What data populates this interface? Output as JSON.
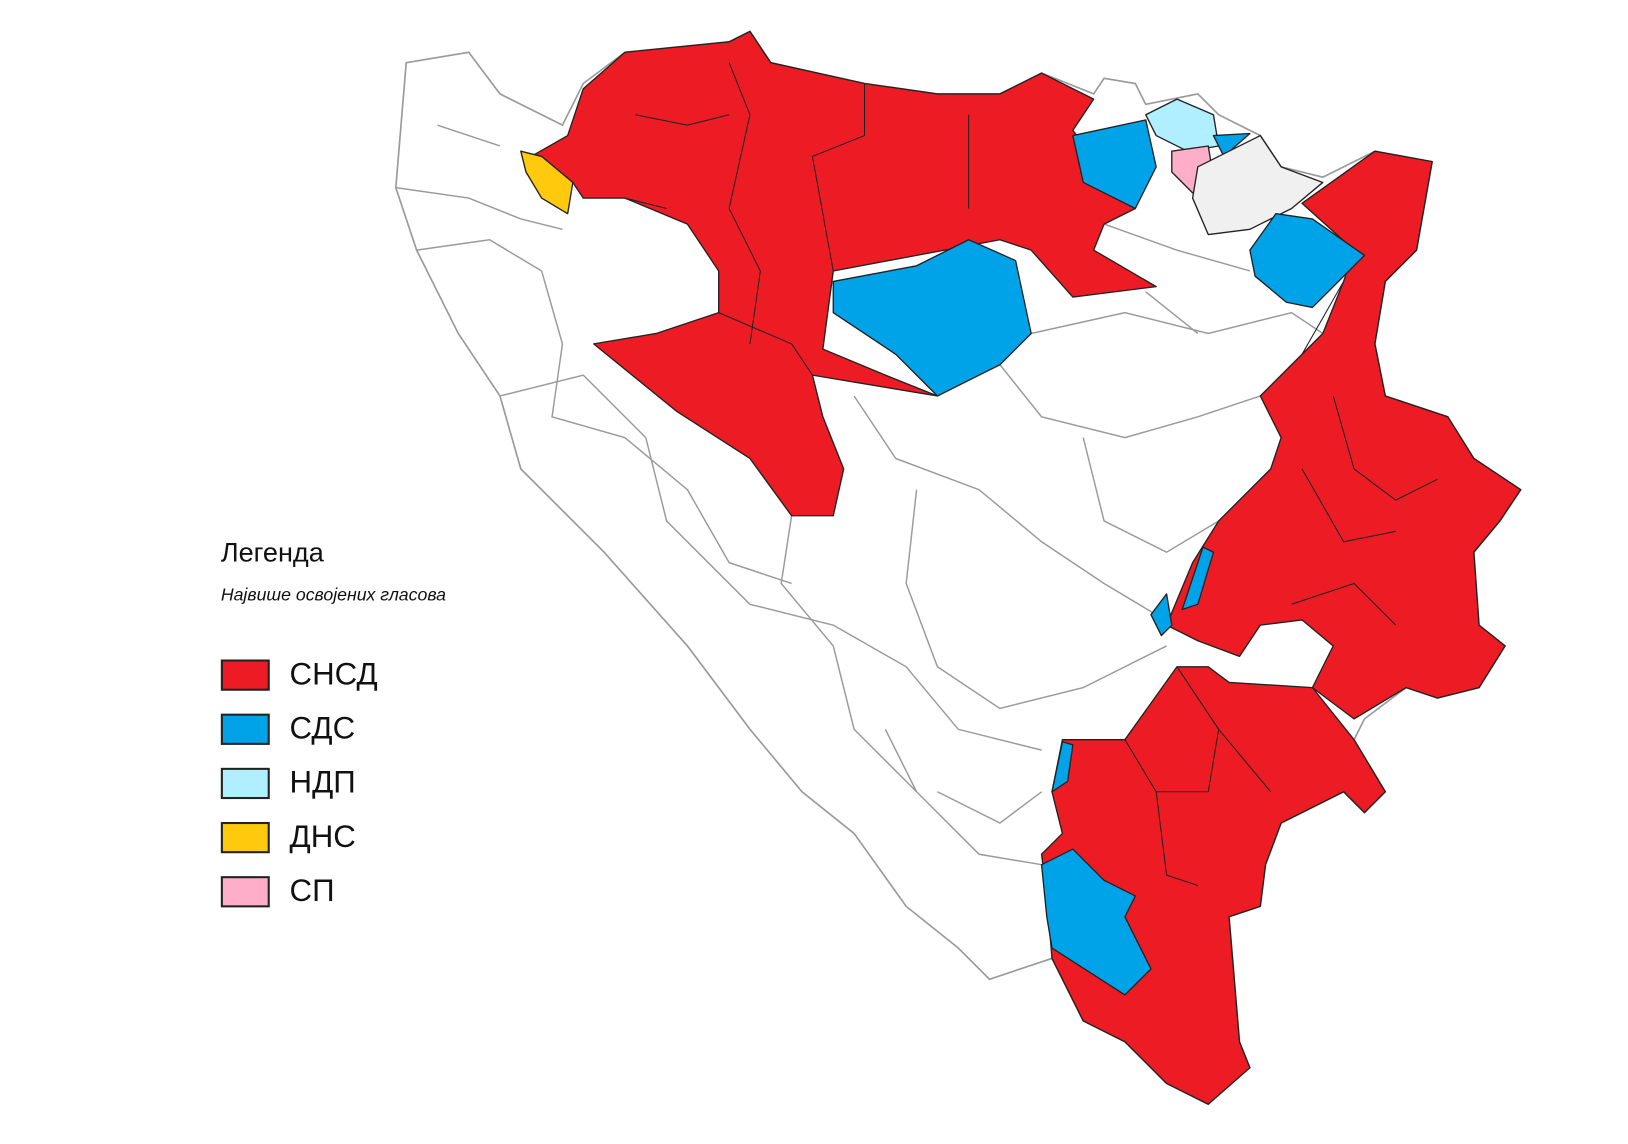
{
  "legend": {
    "title": "Легенда",
    "subtitle": "Највише освојених гласова",
    "items": [
      {
        "label": "СНСД",
        "color": "#ed1c24"
      },
      {
        "label": "СДС",
        "color": "#00a2e8"
      },
      {
        "label": "НДП",
        "color": "#b0efff"
      },
      {
        "label": "ДНС",
        "color": "#ffc90e"
      },
      {
        "label": "СП",
        "color": "#ffaec9"
      }
    ]
  }
}
